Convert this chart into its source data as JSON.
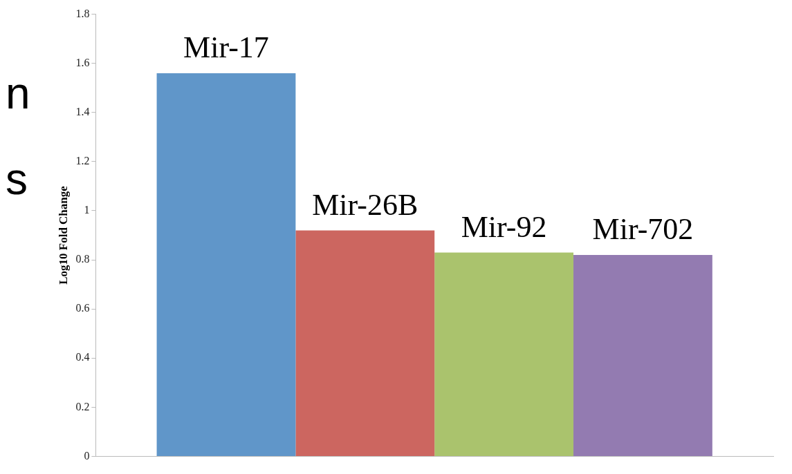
{
  "chart_data": {
    "type": "bar",
    "ylabel": "Log10 Fold Change",
    "categories": [
      null
    ],
    "series": [
      {
        "name": "Mir-17",
        "color": "#6096c9",
        "values": [
          1.56
        ]
      },
      {
        "name": "Mir-26B",
        "color": "#cc6660",
        "values": [
          0.92
        ]
      },
      {
        "name": "Mir-92",
        "color": "#aac36d",
        "values": [
          0.83
        ]
      },
      {
        "name": "Mir-702",
        "color": "#937bb1",
        "values": [
          0.82
        ]
      }
    ],
    "ylim": [
      0,
      1.8
    ],
    "yticks": [
      0,
      0.2,
      0.4,
      0.6,
      0.8,
      1,
      1.2,
      1.4,
      1.6,
      1.8
    ],
    "grid": false,
    "legend": false,
    "tick_labels": "y",
    "annotations": [
      "n",
      "s"
    ]
  }
}
